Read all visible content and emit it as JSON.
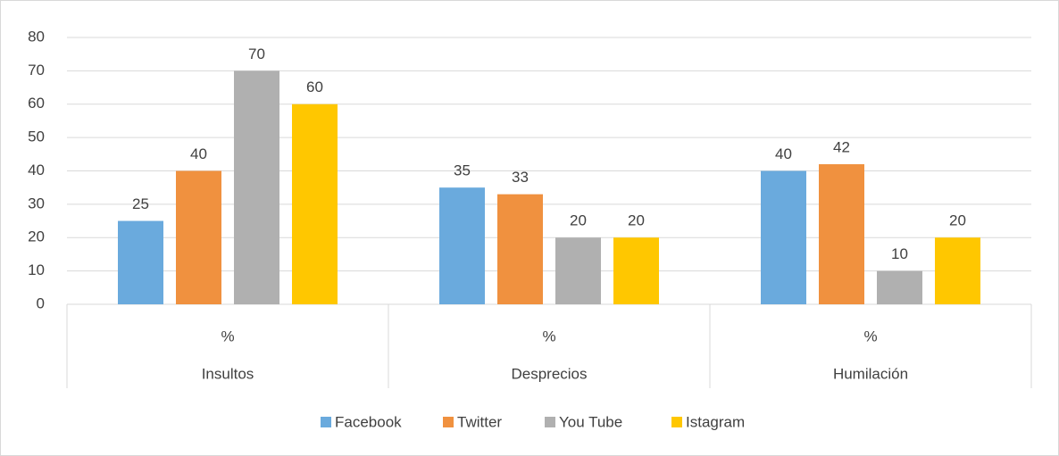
{
  "chart_data": {
    "type": "bar",
    "categories": [
      "Insultos",
      "Desprecios",
      "Humilación"
    ],
    "subcategories": [
      "%",
      "%",
      "%"
    ],
    "series": [
      {
        "name": "Facebook",
        "color": "#6aaadd",
        "values": [
          25,
          35,
          40
        ]
      },
      {
        "name": "Twitter",
        "color": "#f0913f",
        "values": [
          40,
          33,
          42
        ]
      },
      {
        "name": "You Tube",
        "color": "#b0b0b0",
        "values": [
          70,
          20,
          10
        ]
      },
      {
        "name": "Istagram",
        "color": "#ffc700",
        "values": [
          60,
          20,
          20
        ]
      }
    ],
    "ylim": [
      0,
      80
    ],
    "yticks": [
      0,
      10,
      20,
      30,
      40,
      50,
      60,
      70,
      80
    ],
    "grid": true,
    "legend": "bottom"
  }
}
